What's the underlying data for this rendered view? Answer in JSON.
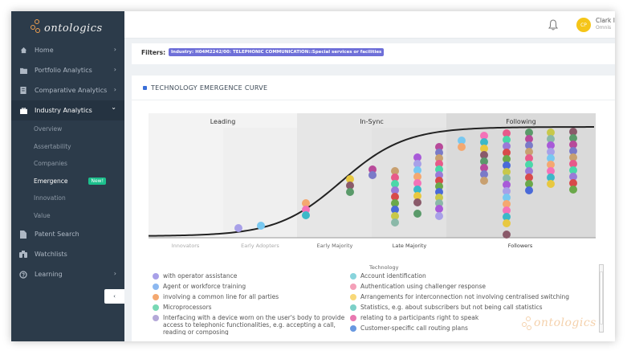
{
  "app": {
    "logo_text": "ontologics"
  },
  "sidebar": {
    "items": [
      {
        "label": "Home",
        "icon": "home-icon",
        "chevron": "›"
      },
      {
        "label": "Portfolio Analytics",
        "icon": "folder-icon",
        "chevron": "›"
      },
      {
        "label": "Comparative Analytics",
        "icon": "compare-icon",
        "chevron": "›"
      },
      {
        "label": "Industry Analytics",
        "icon": "briefcase-icon",
        "chevron": "⌄"
      }
    ],
    "subitems": [
      {
        "label": "Overview"
      },
      {
        "label": "Assertability"
      },
      {
        "label": "Companies"
      },
      {
        "label": "Emergence",
        "badge": "New!"
      },
      {
        "label": "Innovation"
      },
      {
        "label": "Value"
      }
    ],
    "items_bottom": [
      {
        "label": "Patent Search",
        "icon": "document-icon"
      },
      {
        "label": "Watchlists",
        "icon": "binoculars-icon"
      },
      {
        "label": "Learning",
        "icon": "help-icon",
        "chevron": "›"
      }
    ],
    "collapse_label": "‹"
  },
  "topbar": {
    "avatar_initials": "CP",
    "user_name": "Clark I",
    "user_sub": "Omnis"
  },
  "filters": {
    "label": "Filters:",
    "chip": "Industry: H04M2242/00: TELEPHONIC COMMUNICATION::Special services or facilities"
  },
  "card": {
    "title": "TECHNOLOGY EMERGENCE CURVE"
  },
  "chart_data": {
    "type": "scatter",
    "zones": [
      "Leading",
      "In-Sync",
      "Following"
    ],
    "x_categories": [
      "Innovators",
      "Early Adopters",
      "Early Majority",
      "Late Majority",
      "Followers"
    ],
    "x_label": "Technology",
    "legend": [
      {
        "name": "with operator assistance",
        "color": "#a8a0e8"
      },
      {
        "name": "Agent or workforce training",
        "color": "#8cb8f0"
      },
      {
        "name": "involving a common line for all parties",
        "color": "#f4a870"
      },
      {
        "name": "Microprocessors",
        "color": "#78d8b4"
      },
      {
        "name": "Interfacing with a device worn on the user's body to provide access to telephonic functionalities, e.g. accepting a call, reading or composing",
        "color": "#b4a8d8"
      },
      {
        "name": "Account identification",
        "color": "#88d4dc"
      },
      {
        "name": "Authentication using challenger response",
        "color": "#f4a0b8"
      },
      {
        "name": "Arrangements for interconnection not involving centralised switching",
        "color": "#f8d878"
      },
      {
        "name": "Statistics, e.g. about subscribers but not being call statistics",
        "color": "#7cd0c8"
      },
      {
        "name": "relating to a participants right to speak",
        "color": "#e878b0"
      },
      {
        "name": "Customer-specific call routing plans",
        "color": "#6898e0"
      }
    ],
    "colors": [
      "#a8a0e8",
      "#78c8f0",
      "#f4a870",
      "#f472b8",
      "#3cb8c8",
      "#e8c840",
      "#8a5a6a",
      "#5a9a6a",
      "#b84a9a",
      "#7a7ac8",
      "#c8a070",
      "#e85a8a",
      "#4ad8a8",
      "#9a7ad8",
      "#d84a4a",
      "#6aa84a",
      "#4a6ad8",
      "#c8c84a",
      "#8ab8a8",
      "#a85ad8"
    ]
  }
}
